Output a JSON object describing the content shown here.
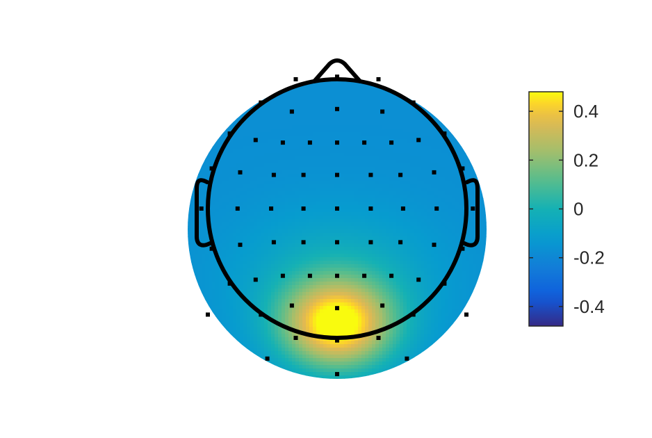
{
  "chart_data": {
    "type": "heatmap",
    "subtype": "eeg-scalp-topography",
    "title": "",
    "colormap": "parula",
    "colorbar": {
      "min": -0.48,
      "max": 0.48,
      "ticks": [
        0.4,
        0.2,
        0,
        -0.2,
        -0.4
      ],
      "tick_labels": [
        "0.4",
        "0.2",
        "0",
        "-0.2",
        "-0.4"
      ],
      "placement": "right"
    },
    "baseline_value": -0.17,
    "hotspots": [
      {
        "x": 0.0,
        "y": -0.9,
        "sigma_x": 0.3,
        "sigma_y": 0.24,
        "amplitude": 0.64
      },
      {
        "x": 0.0,
        "y": -0.55,
        "sigma_x": 0.55,
        "sigma_y": 0.38,
        "amplitude": 0.14
      }
    ],
    "electrodes": [
      [
        0.0,
        1.02
      ],
      [
        -0.32,
        1.0
      ],
      [
        0.32,
        1.0
      ],
      [
        -0.59,
        0.82
      ],
      [
        0.59,
        0.82
      ],
      [
        -0.35,
        0.75
      ],
      [
        0.0,
        0.77
      ],
      [
        0.35,
        0.75
      ],
      [
        -0.83,
        0.58
      ],
      [
        -0.63,
        0.53
      ],
      [
        -0.42,
        0.51
      ],
      [
        -0.21,
        0.51
      ],
      [
        0.0,
        0.51
      ],
      [
        0.21,
        0.51
      ],
      [
        0.42,
        0.51
      ],
      [
        0.63,
        0.53
      ],
      [
        0.83,
        0.58
      ],
      [
        -0.97,
        0.31
      ],
      [
        -0.75,
        0.28
      ],
      [
        -0.49,
        0.26
      ],
      [
        -0.26,
        0.26
      ],
      [
        0.0,
        0.26
      ],
      [
        0.26,
        0.26
      ],
      [
        0.49,
        0.26
      ],
      [
        0.75,
        0.28
      ],
      [
        0.97,
        0.31
      ],
      [
        -1.05,
        0.0
      ],
      [
        -0.77,
        0.0
      ],
      [
        -0.51,
        0.0
      ],
      [
        -0.26,
        0.0
      ],
      [
        0.0,
        0.0
      ],
      [
        0.26,
        0.0
      ],
      [
        0.51,
        0.0
      ],
      [
        0.77,
        0.0
      ],
      [
        1.05,
        0.0
      ],
      [
        -0.97,
        -0.31
      ],
      [
        -0.75,
        -0.28
      ],
      [
        -0.49,
        -0.26
      ],
      [
        -0.26,
        -0.26
      ],
      [
        0.0,
        -0.26
      ],
      [
        0.26,
        -0.26
      ],
      [
        0.49,
        -0.26
      ],
      [
        0.75,
        -0.28
      ],
      [
        0.97,
        -0.31
      ],
      [
        -0.83,
        -0.58
      ],
      [
        -0.63,
        -0.55
      ],
      [
        -0.42,
        -0.52
      ],
      [
        -0.21,
        -0.52
      ],
      [
        0.0,
        -0.52
      ],
      [
        0.21,
        -0.52
      ],
      [
        0.42,
        -0.52
      ],
      [
        0.63,
        -0.55
      ],
      [
        0.83,
        -0.58
      ],
      [
        -1.0,
        -0.82
      ],
      [
        -0.59,
        -0.82
      ],
      [
        -0.35,
        -0.75
      ],
      [
        0.0,
        -0.77
      ],
      [
        0.35,
        -0.75
      ],
      [
        0.59,
        -0.82
      ],
      [
        1.0,
        -0.82
      ],
      [
        -0.32,
        -1.0
      ],
      [
        0.0,
        -1.02
      ],
      [
        0.32,
        -1.0
      ],
      [
        -0.54,
        -1.16
      ],
      [
        0.54,
        -1.16
      ],
      [
        0.0,
        -1.28
      ]
    ]
  }
}
